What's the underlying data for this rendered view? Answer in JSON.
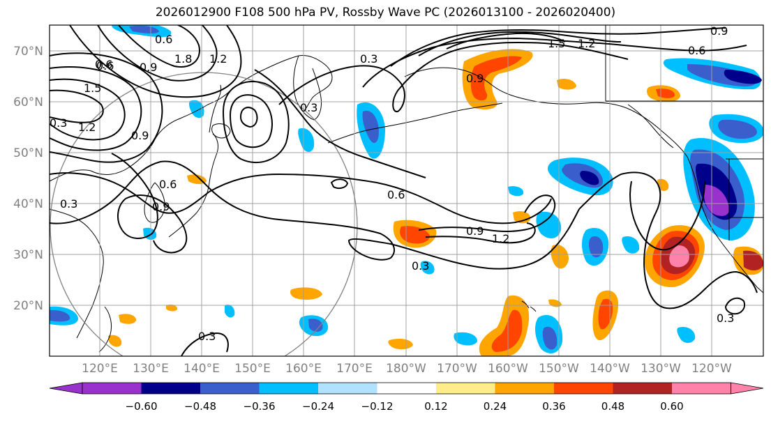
{
  "title": "2026012900 F108 500 hPa PV, Rossby Wave PC (2026013100 - 2026020400)",
  "lat_labels": [
    "70°N",
    "60°N",
    "50°N",
    "40°N",
    "30°N",
    "20°N"
  ],
  "lon_labels": [
    "120°E",
    "130°E",
    "140°E",
    "150°E",
    "160°E",
    "170°E",
    "180°W",
    "170°W",
    "160°W",
    "150°W",
    "140°W",
    "130°W",
    "120°W"
  ],
  "colorbar": {
    "ticks": [
      "−0.60",
      "−0.48",
      "−0.36",
      "−0.24",
      "−0.12",
      "0.12",
      "0.24",
      "0.36",
      "0.48",
      "0.60"
    ],
    "colors": [
      "#9932cc",
      "#00008b",
      "#3a5fcd",
      "#00bfff",
      "#b0e2ff",
      "#ffffff",
      "#ffec8b",
      "#ffa500",
      "#ff4500",
      "#b22222",
      "#ff82ab"
    ]
  },
  "contour_labels": [
    "0.3",
    "0.6",
    "0.9",
    "1.2",
    "1.5",
    "1.8",
    "0.3",
    "0.6",
    "0.9",
    "1.2",
    "1.5",
    "1.2",
    "0.9",
    "0.6",
    "0.3",
    "0.9",
    "0.6",
    "0.3",
    "0.6",
    "0.9",
    "1.2",
    "0.3",
    "0.3",
    "0.3",
    "0.9",
    "0.6"
  ],
  "colors": {
    "grid": "#a0a0a0",
    "contour": "#000000",
    "coast": "#000000",
    "circle": "#808080"
  }
}
